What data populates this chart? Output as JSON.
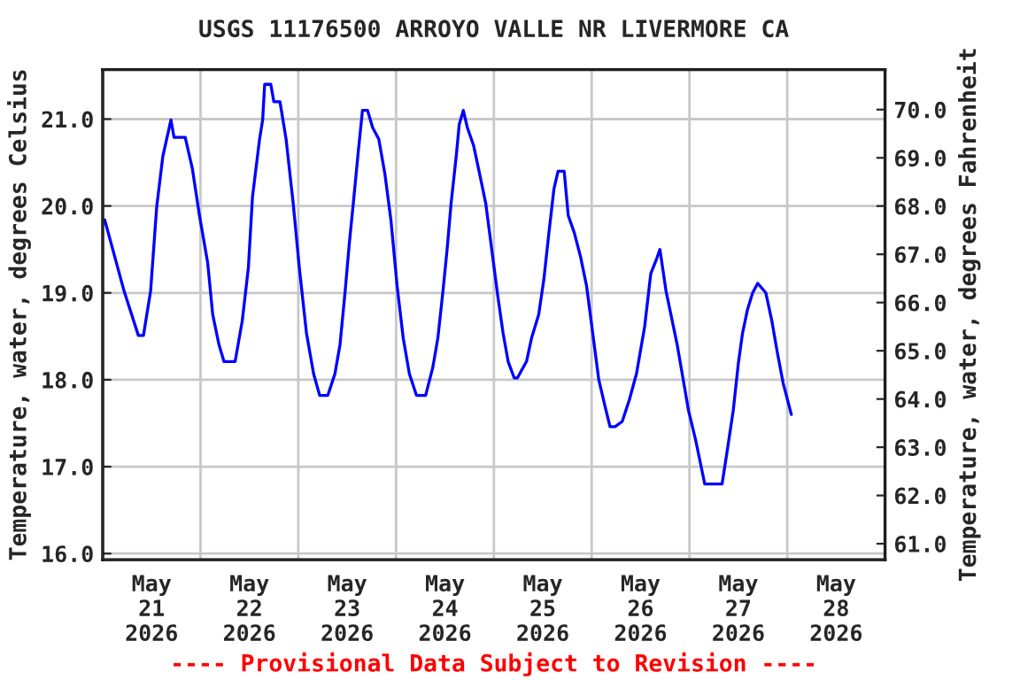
{
  "chart_data": {
    "type": "line",
    "title": "USGS 11176500 ARROYO VALLE NR LIVERMORE CA",
    "ylabel": "Temperature, water, degrees Celsius",
    "y2label": "Temperature, water, degrees Fahrenheit",
    "annotations": [
      "---- Provisional Data Subject to Revision ----"
    ],
    "x": [
      "2026-05-21T00:30",
      "2026-05-21T05:15",
      "2026-05-21T08:45",
      "2026-05-21T10:00",
      "2026-05-21T11:45",
      "2026-05-21T13:15",
      "2026-05-21T14:45",
      "2026-05-21T16:45",
      "2026-05-21T17:30",
      "2026-05-21T20:15",
      "2026-05-21T22:00",
      "2026-05-21T23:45",
      "2026-05-22T01:45",
      "2026-05-22T03:00",
      "2026-05-22T04:30",
      "2026-05-22T05:45",
      "2026-05-22T08:30",
      "2026-05-22T10:15",
      "2026-05-22T11:45",
      "2026-05-22T12:45",
      "2026-05-22T14:30",
      "2026-05-22T15:15",
      "2026-05-22T15:45",
      "2026-05-22T17:15",
      "2026-05-22T18:00",
      "2026-05-22T19:30",
      "2026-05-22T21:00",
      "2026-05-22T22:45",
      "2026-05-23T00:15",
      "2026-05-23T02:00",
      "2026-05-23T03:45",
      "2026-05-23T05:15",
      "2026-05-23T07:15",
      "2026-05-23T09:00",
      "2026-05-23T10:15",
      "2026-05-23T11:30",
      "2026-05-23T12:30",
      "2026-05-23T13:30",
      "2026-05-23T14:45",
      "2026-05-23T15:45",
      "2026-05-23T17:00",
      "2026-05-23T18:15",
      "2026-05-23T19:45",
      "2026-05-23T21:15",
      "2026-05-23T22:45",
      "2026-05-24T00:15",
      "2026-05-24T01:45",
      "2026-05-24T03:15",
      "2026-05-24T05:00",
      "2026-05-24T07:15",
      "2026-05-24T09:00",
      "2026-05-24T10:15",
      "2026-05-24T11:30",
      "2026-05-24T12:30",
      "2026-05-24T13:30",
      "2026-05-24T14:45",
      "2026-05-24T15:30",
      "2026-05-24T16:30",
      "2026-05-24T17:30",
      "2026-05-24T19:00",
      "2026-05-24T20:30",
      "2026-05-24T22:00",
      "2026-05-24T23:30",
      "2026-05-25T01:00",
      "2026-05-25T02:15",
      "2026-05-25T03:30",
      "2026-05-25T05:00",
      "2026-05-25T05:45",
      "2026-05-25T08:00",
      "2026-05-25T09:15",
      "2026-05-25T11:00",
      "2026-05-25T12:15",
      "2026-05-25T13:30",
      "2026-05-25T14:45",
      "2026-05-25T15:45",
      "2026-05-25T17:15",
      "2026-05-25T18:15",
      "2026-05-25T19:45",
      "2026-05-25T21:15",
      "2026-05-25T22:45",
      "2026-05-26T00:15",
      "2026-05-26T01:45",
      "2026-05-26T03:15",
      "2026-05-26T04:30",
      "2026-05-26T05:45",
      "2026-05-26T07:30",
      "2026-05-26T09:15",
      "2026-05-26T11:00",
      "2026-05-26T13:00",
      "2026-05-26T14:30",
      "2026-05-26T16:00",
      "2026-05-26T16:45",
      "2026-05-26T18:15",
      "2026-05-26T19:30",
      "2026-05-26T21:00",
      "2026-05-26T22:15",
      "2026-05-26T23:45",
      "2026-05-27T01:30",
      "2026-05-27T03:00",
      "2026-05-27T03:45",
      "2026-05-27T08:00",
      "2026-05-27T09:15",
      "2026-05-27T10:45",
      "2026-05-27T12:00",
      "2026-05-27T13:00",
      "2026-05-27T14:15",
      "2026-05-27T15:30",
      "2026-05-27T16:45",
      "2026-05-27T18:45",
      "2026-05-27T20:15",
      "2026-05-27T21:30",
      "2026-05-27T23:00",
      "2026-05-28T01:00"
    ],
    "series": [
      {
        "color": "#0000ff",
        "values": [
          19.84,
          19.02,
          18.51,
          18.51,
          19.02,
          19.99,
          20.57,
          20.99,
          20.79,
          20.79,
          20.43,
          19.89,
          19.35,
          18.75,
          18.41,
          18.21,
          18.21,
          18.68,
          19.29,
          20.1,
          20.77,
          20.99,
          21.4,
          21.4,
          21.2,
          21.2,
          20.77,
          20.03,
          19.29,
          18.54,
          18.07,
          17.82,
          17.82,
          18.07,
          18.41,
          19.02,
          19.56,
          20.03,
          20.64,
          21.1,
          21.1,
          20.9,
          20.77,
          20.37,
          19.83,
          19.08,
          18.48,
          18.07,
          17.82,
          17.82,
          18.14,
          18.48,
          19.02,
          19.49,
          20.03,
          20.57,
          20.94,
          21.1,
          20.9,
          20.7,
          20.37,
          20.03,
          19.49,
          18.95,
          18.54,
          18.21,
          18.02,
          18.02,
          18.21,
          18.48,
          18.75,
          19.15,
          19.69,
          20.2,
          20.4,
          20.4,
          19.89,
          19.69,
          19.42,
          19.08,
          18.54,
          18.0,
          17.7,
          17.46,
          17.46,
          17.52,
          17.77,
          18.07,
          18.61,
          19.22,
          19.4,
          19.5,
          19.02,
          18.74,
          18.4,
          18.06,
          17.65,
          17.31,
          16.97,
          16.8,
          16.8,
          17.18,
          17.65,
          18.19,
          18.53,
          18.81,
          19.0,
          19.11,
          19.0,
          18.67,
          18.33,
          17.96,
          17.6
        ]
      }
    ],
    "xlim": [
      "2026-05-21",
      "2026-05-29"
    ],
    "xticks": [
      {
        "value": "2026-05-21T12:00",
        "label": "May\n21\n2026"
      },
      {
        "value": "2026-05-22T12:00",
        "label": "May\n22\n2026"
      },
      {
        "value": "2026-05-23T12:00",
        "label": "May\n23\n2026"
      },
      {
        "value": "2026-05-24T12:00",
        "label": "May\n24\n2026"
      },
      {
        "value": "2026-05-25T12:00",
        "label": "May\n25\n2026"
      },
      {
        "value": "2026-05-26T12:00",
        "label": "May\n26\n2026"
      },
      {
        "value": "2026-05-27T12:00",
        "label": "May\n27\n2026"
      },
      {
        "value": "2026-05-28T12:00",
        "label": "May\n28\n2026"
      },
      {
        "value": "2026-05-22",
        "label": null
      },
      {
        "value": "2026-05-23",
        "label": null
      },
      {
        "value": "2026-05-24",
        "label": null
      },
      {
        "value": "2026-05-25",
        "label": null
      },
      {
        "value": "2026-05-26",
        "label": null
      },
      {
        "value": "2026-05-27",
        "label": null
      },
      {
        "value": "2026-05-28",
        "label": null
      }
    ],
    "ylim": [
      15.93,
      21.57
    ],
    "yticks": [
      {
        "value": 16,
        "label": "16.0"
      },
      {
        "value": 17,
        "label": "17.0"
      },
      {
        "value": 18,
        "label": "18.0"
      },
      {
        "value": 19,
        "label": "19.0"
      },
      {
        "value": 20,
        "label": "20.0"
      },
      {
        "value": 21,
        "label": "21.0"
      }
    ],
    "y2lim": [
      60.67,
      70.83
    ],
    "y2ticks": [
      {
        "value": 61,
        "label": "61.0"
      },
      {
        "value": 62,
        "label": "62.0"
      },
      {
        "value": 63,
        "label": "63.0"
      },
      {
        "value": 64,
        "label": "64.0"
      },
      {
        "value": 65,
        "label": "65.0"
      },
      {
        "value": 66,
        "label": "66.0"
      },
      {
        "value": 67,
        "label": "67.0"
      },
      {
        "value": 68,
        "label": "68.0"
      },
      {
        "value": 69,
        "label": "69.0"
      },
      {
        "value": 70,
        "label": "70.0"
      }
    ],
    "grid": true,
    "legend": false
  }
}
